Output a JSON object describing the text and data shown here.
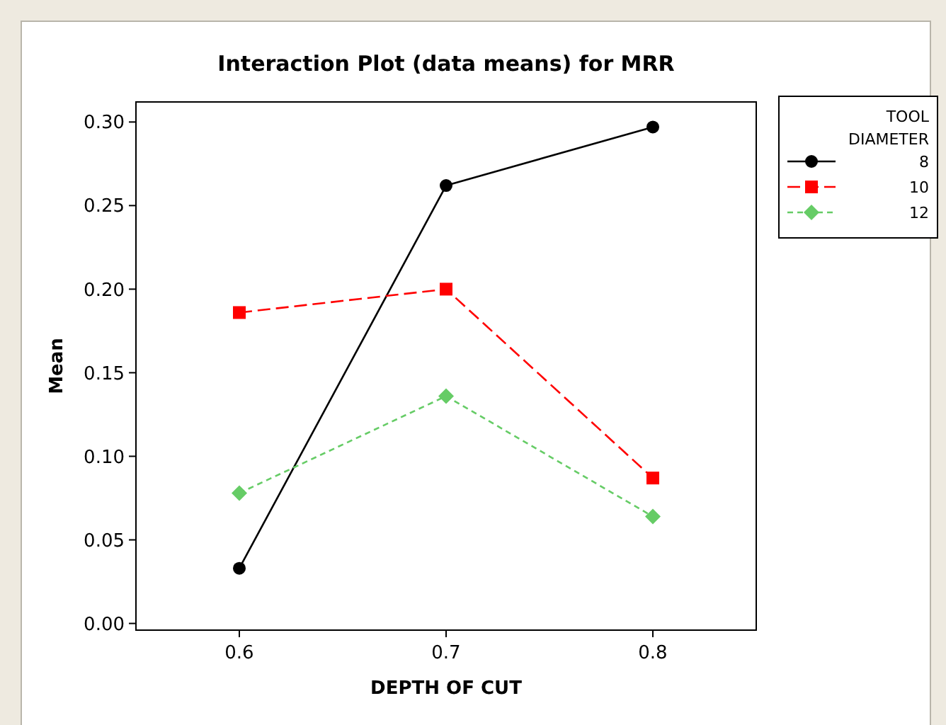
{
  "chart_data": {
    "type": "line",
    "title": "Interaction Plot (data means) for MRR",
    "xlabel": "DEPTH OF CUT",
    "ylabel": "Mean",
    "legend_title": "TOOL\nDIAMETER",
    "x": [
      0.6,
      0.7,
      0.8
    ],
    "series": [
      {
        "name": "8",
        "color": "#000000",
        "values": [
          0.033,
          0.262,
          0.297
        ],
        "marker": "circle",
        "line_style": "solid"
      },
      {
        "name": "10",
        "color": "#ff0000",
        "values": [
          0.186,
          0.2,
          0.087
        ],
        "marker": "square",
        "line_style": "dashed"
      },
      {
        "name": "12",
        "color": "#66cc66",
        "values": [
          0.078,
          0.136,
          0.064
        ],
        "marker": "diamond",
        "line_style": "dotted"
      }
    ],
    "xlim": [
      0.55,
      0.85
    ],
    "xticks": [
      {
        "value": 0.6,
        "label": "0.6"
      },
      {
        "value": 0.7,
        "label": "0.7"
      },
      {
        "value": 0.8,
        "label": "0.8"
      }
    ],
    "ylim": [
      -0.004,
      0.312
    ],
    "yticks": [
      {
        "value": 0,
        "label": "0.00"
      },
      {
        "value": 0.05,
        "label": "0.05"
      },
      {
        "value": 0.1,
        "label": "0.10"
      },
      {
        "value": 0.15,
        "label": "0.15"
      },
      {
        "value": 0.2,
        "label": "0.20"
      },
      {
        "value": 0.25,
        "label": "0.25"
      },
      {
        "value": 0.3,
        "label": "0.30"
      }
    ],
    "grid": false,
    "legend": "right"
  }
}
